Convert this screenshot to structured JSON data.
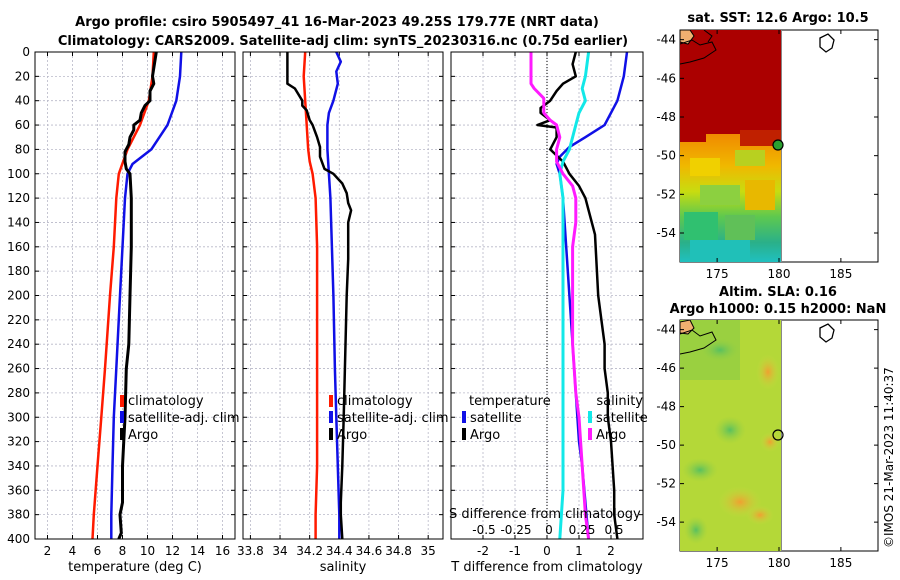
{
  "titles": {
    "line1": "Argo profile: csiro 5905497_41 16-Mar-2023 49.25S 179.77E (NRT data)",
    "line2": "Climatology: CARS2009. Satellite-adj clim: synTS_20230316.nc (0.75d earlier)",
    "sst_title": "sat. SST: 12.6 Argo: 10.5",
    "sla_title1": "Altim. SLA: 0.16",
    "sla_title2": "Argo h1000: 0.15 h2000: NaN",
    "credit": "©IMOS 21-Mar-2023 11:40:37"
  },
  "colors": {
    "climatology": "#ff1a00",
    "satellite": "#1010e6",
    "argo": "#000000",
    "sat_salinity": "#12e8e8",
    "argo_salinity": "#ff1aff",
    "grid": "#b8b8c8"
  },
  "depth_axis": {
    "ylim": [
      0,
      400
    ],
    "ticks": [
      0,
      20,
      40,
      60,
      80,
      100,
      120,
      140,
      160,
      180,
      200,
      220,
      240,
      260,
      280,
      300,
      320,
      340,
      360,
      380,
      400
    ]
  },
  "chart_data": [
    {
      "type": "line",
      "id": "temperature",
      "xlabel": "temperature (deg C)",
      "xlim": [
        1,
        17
      ],
      "xticks": [
        2,
        4,
        6,
        8,
        10,
        12,
        14,
        16
      ],
      "legend": [
        "climatology",
        "satellite-adj. clim",
        "Argo"
      ],
      "series": [
        {
          "name": "climatology",
          "color": "#ff1a00",
          "width": 2.5,
          "points": [
            [
              10.5,
              0
            ],
            [
              10.4,
              20
            ],
            [
              10.1,
              40
            ],
            [
              9.4,
              60
            ],
            [
              8.4,
              80
            ],
            [
              7.7,
              100
            ],
            [
              7.5,
              120
            ],
            [
              7.3,
              160
            ],
            [
              7.0,
              200
            ],
            [
              6.6,
              260
            ],
            [
              6.3,
              300
            ],
            [
              6.0,
              340
            ],
            [
              5.7,
              380
            ],
            [
              5.6,
              400
            ]
          ]
        },
        {
          "name": "satellite-adj. clim",
          "color": "#1010e6",
          "width": 2.5,
          "points": [
            [
              12.7,
              0
            ],
            [
              12.6,
              20
            ],
            [
              12.3,
              40
            ],
            [
              11.6,
              60
            ],
            [
              10.3,
              80
            ],
            [
              8.8,
              92
            ],
            [
              8.4,
              100
            ],
            [
              8.2,
              120
            ],
            [
              8.0,
              160
            ],
            [
              7.8,
              200
            ],
            [
              7.5,
              260
            ],
            [
              7.3,
              300
            ],
            [
              7.2,
              340
            ],
            [
              7.1,
              380
            ],
            [
              7.1,
              400
            ]
          ]
        },
        {
          "name": "Argo",
          "color": "#000000",
          "width": 3,
          "points": [
            [
              10.7,
              0
            ],
            [
              10.4,
              20
            ],
            [
              10.5,
              26
            ],
            [
              10.2,
              32
            ],
            [
              10.2,
              40
            ],
            [
              9.8,
              44
            ],
            [
              9.5,
              50
            ],
            [
              9.4,
              56
            ],
            [
              8.9,
              60
            ],
            [
              8.9,
              64
            ],
            [
              8.6,
              70
            ],
            [
              8.5,
              76
            ],
            [
              8.2,
              82
            ],
            [
              8.2,
              90
            ],
            [
              8.3,
              96
            ],
            [
              8.6,
              100
            ],
            [
              8.7,
              120
            ],
            [
              8.7,
              160
            ],
            [
              8.6,
              200
            ],
            [
              8.5,
              240
            ],
            [
              8.3,
              260
            ],
            [
              8.2,
              300
            ],
            [
              8.0,
              340
            ],
            [
              8.0,
              370
            ],
            [
              7.8,
              380
            ],
            [
              7.9,
              395
            ],
            [
              7.7,
              400
            ]
          ]
        }
      ]
    },
    {
      "type": "line",
      "id": "salinity",
      "xlabel": "salinity",
      "xlim": [
        33.75,
        35.1
      ],
      "xticks": [
        33.8,
        34.0,
        34.2,
        34.4,
        34.6,
        34.8,
        35.0
      ],
      "xticklabels": [
        "33.8",
        "34",
        "34.2",
        "34.4",
        "34.6",
        "34.8",
        "35"
      ],
      "legend": [
        "climatology",
        "satellite-adj. clim",
        "Argo"
      ],
      "series": [
        {
          "name": "climatology",
          "color": "#ff1a00",
          "width": 2.5,
          "points": [
            [
              34.17,
              0
            ],
            [
              34.16,
              20
            ],
            [
              34.17,
              40
            ],
            [
              34.18,
              60
            ],
            [
              34.19,
              80
            ],
            [
              34.2,
              90
            ],
            [
              34.22,
              100
            ],
            [
              34.24,
              120
            ],
            [
              34.25,
              160
            ],
            [
              34.25,
              200
            ],
            [
              34.25,
              260
            ],
            [
              34.25,
              300
            ],
            [
              34.25,
              340
            ],
            [
              34.24,
              380
            ],
            [
              34.24,
              400
            ]
          ]
        },
        {
          "name": "satellite-adj. clim",
          "color": "#1010e6",
          "width": 2.5,
          "points": [
            [
              34.38,
              0
            ],
            [
              34.41,
              8
            ],
            [
              34.38,
              16
            ],
            [
              34.39,
              26
            ],
            [
              34.36,
              40
            ],
            [
              34.33,
              50
            ],
            [
              34.32,
              60
            ],
            [
              34.32,
              80
            ],
            [
              34.33,
              100
            ],
            [
              34.34,
              120
            ],
            [
              34.35,
              160
            ],
            [
              34.36,
              200
            ],
            [
              34.37,
              260
            ],
            [
              34.38,
              300
            ],
            [
              34.39,
              340
            ],
            [
              34.4,
              380
            ],
            [
              34.4,
              400
            ]
          ]
        },
        {
          "name": "Argo",
          "color": "#000000",
          "width": 2.5,
          "points": [
            [
              34.05,
              0
            ],
            [
              34.05,
              20
            ],
            [
              34.05,
              26
            ],
            [
              34.1,
              30
            ],
            [
              34.15,
              40
            ],
            [
              34.15,
              44
            ],
            [
              34.18,
              48
            ],
            [
              34.2,
              56
            ],
            [
              34.22,
              60
            ],
            [
              34.25,
              70
            ],
            [
              34.27,
              78
            ],
            [
              34.27,
              86
            ],
            [
              34.3,
              96
            ],
            [
              34.36,
              100
            ],
            [
              34.42,
              108
            ],
            [
              34.45,
              116
            ],
            [
              34.46,
              124
            ],
            [
              34.48,
              130
            ],
            [
              34.46,
              140
            ],
            [
              34.46,
              170
            ],
            [
              34.45,
              200
            ],
            [
              34.44,
              250
            ],
            [
              34.43,
              300
            ],
            [
              34.42,
              340
            ],
            [
              34.41,
              370
            ],
            [
              34.41,
              380
            ],
            [
              34.42,
              400
            ]
          ]
        }
      ]
    },
    {
      "type": "line",
      "id": "difference",
      "xlabel": "T difference from climatology",
      "xlim": [
        -3,
        3
      ],
      "xticks": [
        -2,
        -1,
        0,
        1,
        2
      ],
      "second_xlabel": "S difference from climatology",
      "second_xtick_labels": [
        "-0.5",
        "-0.25",
        "0",
        "0.25",
        "0.5"
      ],
      "second_xtick_positions_T": [
        -2,
        -1,
        0,
        1,
        2
      ],
      "legend_left_title": "temperature",
      "legend_left": [
        "satellite",
        "Argo"
      ],
      "legend_right_title": "salinity",
      "legend_right": [
        "satellite",
        "Argo"
      ],
      "series": [
        {
          "name": "T satellite",
          "color": "#1010e6",
          "width": 2.5,
          "points": [
            [
              2.5,
              0
            ],
            [
              2.4,
              20
            ],
            [
              2.2,
              40
            ],
            [
              1.8,
              60
            ],
            [
              1.2,
              70
            ],
            [
              0.7,
              78
            ],
            [
              0.4,
              86
            ],
            [
              0.3,
              92
            ],
            [
              0.4,
              100
            ],
            [
              0.5,
              120
            ],
            [
              0.6,
              160
            ],
            [
              0.7,
              200
            ],
            [
              0.8,
              240
            ],
            [
              0.9,
              280
            ],
            [
              1.0,
              320
            ],
            [
              1.1,
              340
            ],
            [
              1.2,
              370
            ],
            [
              1.3,
              400
            ]
          ]
        },
        {
          "name": "T Argo",
          "color": "#000000",
          "width": 2.5,
          "points": [
            [
              0.9,
              0
            ],
            [
              0.8,
              10
            ],
            [
              0.9,
              20
            ],
            [
              0.5,
              26
            ],
            [
              0.3,
              32
            ],
            [
              0.1,
              40
            ],
            [
              -0.2,
              46
            ],
            [
              -0.2,
              50
            ],
            [
              0.1,
              56
            ],
            [
              -0.3,
              60
            ],
            [
              0.3,
              62
            ],
            [
              0.3,
              70
            ],
            [
              0.1,
              80
            ],
            [
              0.5,
              90
            ],
            [
              0.7,
              100
            ],
            [
              1.0,
              110
            ],
            [
              1.2,
              120
            ],
            [
              1.3,
              130
            ],
            [
              1.5,
              150
            ],
            [
              1.6,
              200
            ],
            [
              1.7,
              220
            ],
            [
              1.8,
              240
            ],
            [
              1.8,
              260
            ],
            [
              1.9,
              280
            ],
            [
              1.9,
              300
            ],
            [
              2.0,
              320
            ],
            [
              2.1,
              360
            ],
            [
              2.1,
              380
            ],
            [
              2.2,
              400
            ]
          ]
        },
        {
          "name": "S satellite",
          "color": "#12e8e8",
          "width": 3,
          "points": [
            [
              1.3,
              0
            ],
            [
              1.2,
              20
            ],
            [
              1.1,
              30
            ],
            [
              1.2,
              40
            ],
            [
              1.0,
              50
            ],
            [
              0.9,
              60
            ],
            [
              0.8,
              70
            ],
            [
              0.7,
              80
            ],
            [
              0.5,
              90
            ],
            [
              0.4,
              100
            ],
            [
              0.5,
              120
            ],
            [
              0.5,
              160
            ],
            [
              0.5,
              200
            ],
            [
              0.5,
              240
            ],
            [
              0.5,
              280
            ],
            [
              0.5,
              320
            ],
            [
              0.5,
              360
            ],
            [
              0.4,
              400
            ]
          ]
        },
        {
          "name": "S Argo",
          "color": "#ff1aff",
          "width": 3,
          "points": [
            [
              -0.5,
              0
            ],
            [
              -0.5,
              26
            ],
            [
              -0.4,
              30
            ],
            [
              -0.1,
              38
            ],
            [
              -0.1,
              44
            ],
            [
              -0.1,
              50
            ],
            [
              0.1,
              56
            ],
            [
              0.3,
              60
            ],
            [
              0.4,
              70
            ],
            [
              0.3,
              80
            ],
            [
              0.3,
              90
            ],
            [
              0.5,
              100
            ],
            [
              0.8,
              110
            ],
            [
              0.9,
              120
            ],
            [
              0.9,
              140
            ],
            [
              0.8,
              160
            ],
            [
              0.8,
              200
            ],
            [
              0.8,
              240
            ],
            [
              0.9,
              280
            ],
            [
              1.0,
              300
            ],
            [
              1.1,
              340
            ],
            [
              1.2,
              380
            ],
            [
              1.3,
              400
            ]
          ]
        }
      ]
    },
    {
      "type": "heatmap",
      "id": "sst-map",
      "xticks": [
        175,
        180,
        185
      ],
      "yticks": [
        -44,
        -46,
        -48,
        -50,
        -52,
        -54
      ],
      "xlim": [
        172,
        188
      ],
      "ylim": [
        -55.5,
        -43.5
      ],
      "profile_location": {
        "lon": 179.77,
        "lat": -49.25
      }
    },
    {
      "type": "heatmap",
      "id": "sla-map",
      "xticks": [
        175,
        180,
        185
      ],
      "yticks": [
        -44,
        -46,
        -48,
        -50,
        -52,
        -54
      ],
      "xlim": [
        172,
        188
      ],
      "ylim": [
        -55.5,
        -43.5
      ],
      "profile_location": {
        "lon": 179.77,
        "lat": -49.25
      }
    }
  ]
}
